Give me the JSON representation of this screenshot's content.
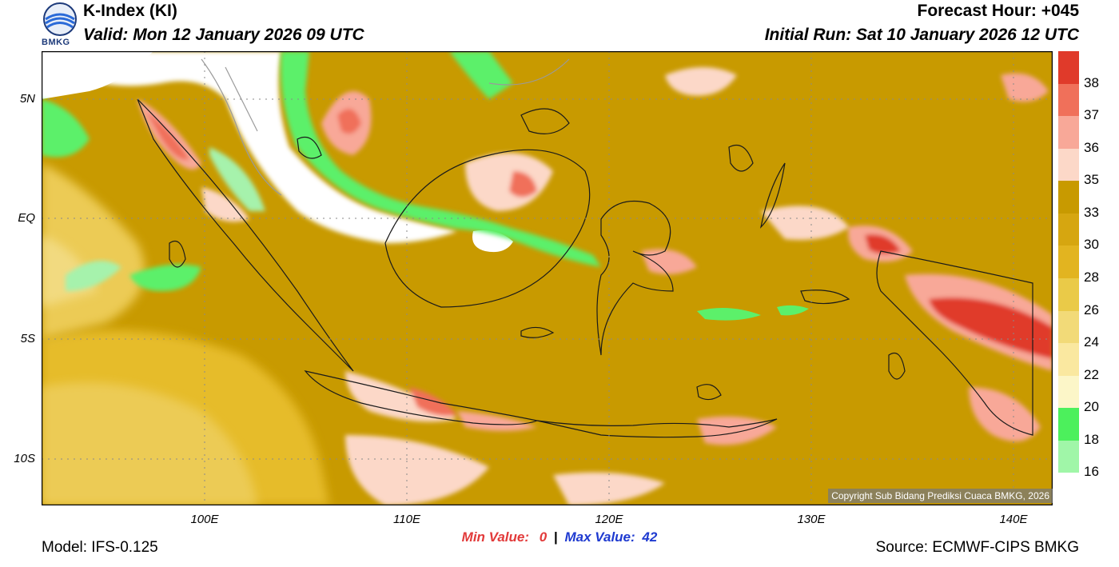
{
  "header": {
    "title": "K-Index (KI)",
    "valid": "Valid: Mon 12 January 2026 09 UTC",
    "forecast_hour": "Forecast Hour: +045",
    "initial_run": "Initial Run: Sat 10 January 2026 12 UTC"
  },
  "logo": {
    "text": "BMKG"
  },
  "map": {
    "lat_labels": [
      "5N",
      "EQ",
      "5S",
      "10S"
    ],
    "lon_labels": [
      "100E",
      "110E",
      "120E",
      "130E",
      "140E"
    ],
    "copyright": "Copyright Sub Bidang Prediksi Cuaca BMKG, 2026"
  },
  "colorbar": {
    "labels": [
      "38",
      "37",
      "36",
      "35",
      "33",
      "30",
      "28",
      "26",
      "24",
      "22",
      "20",
      "18",
      "16"
    ],
    "colors": [
      "#e03a2a",
      "#f0705a",
      "#f8a898",
      "#fcd8c8",
      "#c89a00",
      "#d6a610",
      "#e2b420",
      "#eaca48",
      "#f2da78",
      "#fae8a0",
      "#fcf6c8",
      "#4cf05c",
      "#a0f6a8",
      "#ffffff"
    ]
  },
  "stats": {
    "min_label": "Min Value:",
    "min_value": "0",
    "separator": "|",
    "max_label": "Max Value:",
    "max_value": "42"
  },
  "footer": {
    "model": "Model: IFS-0.125",
    "source": "Source: ECMWF-CIPS BMKG"
  }
}
